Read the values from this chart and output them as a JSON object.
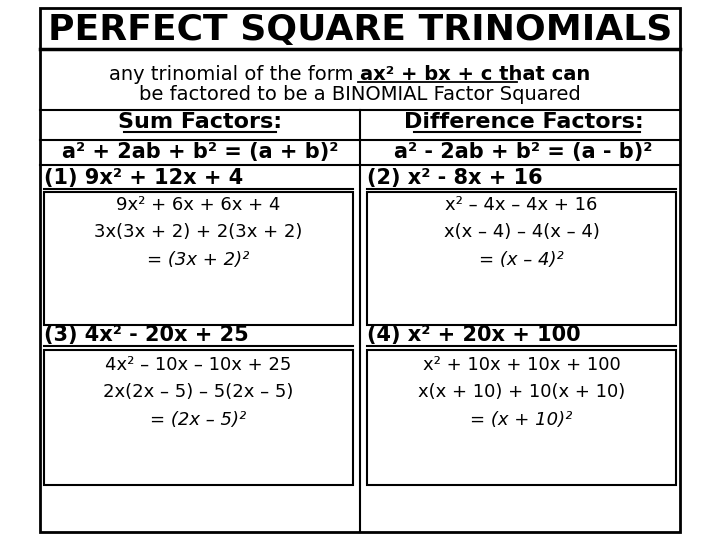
{
  "title": "PERFECT SQUARE TRINOMIALS",
  "subtitle_line1_pre": "any trinomial of the form ",
  "subtitle_bold": "ax² + bx + c",
  "subtitle_line1_post": " that can",
  "subtitle_line2": "be factored to be a BINOMIAL Factor Squared",
  "sum_header": "Sum Factors:",
  "diff_header": "Difference Factors:",
  "sum_formula": "a² + 2ab + b² = (a + b)²",
  "diff_formula": "a² - 2ab + b² = (a - b)²",
  "p1_header": "(1) 9x² + 12x + 4",
  "p1_step1": "9x² + 6x + 6x + 4",
  "p1_step2": "3x(3x + 2) + 2(3x + 2)",
  "p1_step3": "= (3x + 2)²",
  "p2_header": "(2) x² - 8x + 16",
  "p2_step1": "x² – 4x – 4x + 16",
  "p2_step2": "x(x – 4) – 4(x – 4)",
  "p2_step3": "= (x – 4)²",
  "p3_header": "(3) 4x² - 20x + 25",
  "p3_step1": "4x² – 10x – 10x + 25",
  "p3_step2": "2x(2x – 5) – 5(2x – 5)",
  "p3_step3": "= (2x – 5)²",
  "p4_header": "(4) x² + 20x + 100",
  "p4_step1": "x² + 10x + 10x + 100",
  "p4_step2": "x(x + 10) + 10(x + 10)",
  "p4_step3": "= (x + 10)²",
  "bg_color": "#ffffff",
  "text_color": "#000000",
  "title_fontsize": 26,
  "subtitle_fontsize": 14,
  "header_fontsize": 16,
  "formula_fontsize": 15,
  "prob_header_fontsize": 15,
  "step_fontsize": 13
}
